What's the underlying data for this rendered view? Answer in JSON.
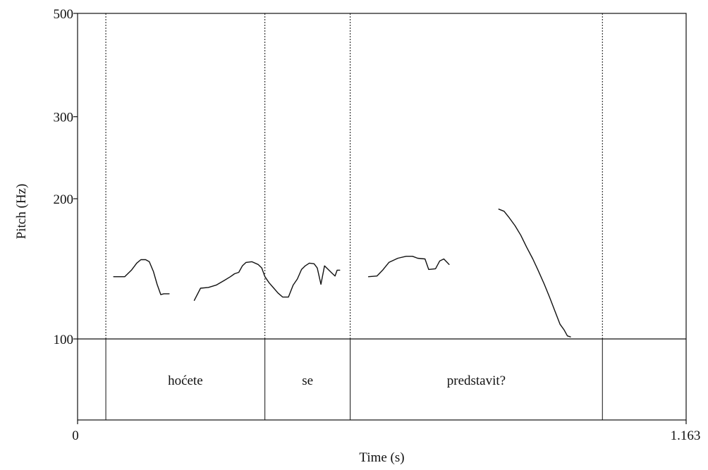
{
  "chart_data": {
    "type": "line",
    "title": "",
    "xlabel": "Time (s)",
    "ylabel": "Pitch (Hz)",
    "xlim": [
      0,
      1.163
    ],
    "ylim": [
      100,
      500
    ],
    "y_scale": "log",
    "x_tick_labels": [
      "0",
      "1.163"
    ],
    "y_tick_labels": [
      "100",
      "200",
      "300",
      "500"
    ],
    "grid": false,
    "legend": "none",
    "colors": {
      "line": "#111111",
      "frame": "#111111",
      "background": "#ffffff"
    },
    "boundaries": [
      0.054,
      0.358,
      0.521,
      1.003
    ],
    "intervals": [
      {
        "text": "hoćete",
        "start": 0.054,
        "end": 0.358
      },
      {
        "text": "se",
        "start": 0.358,
        "end": 0.521
      },
      {
        "text": "predstavit?",
        "start": 0.521,
        "end": 1.003
      }
    ],
    "series": [
      {
        "points": [
          [
            0.069,
            136.0
          ],
          [
            0.09,
            136.0
          ],
          [
            0.103,
            140.5
          ],
          [
            0.113,
            145.5
          ],
          [
            0.121,
            148.0
          ],
          [
            0.13,
            148.0
          ],
          [
            0.137,
            146.5
          ],
          [
            0.145,
            139.5
          ],
          [
            0.152,
            131.0
          ],
          [
            0.159,
            124.5
          ],
          [
            0.165,
            125.0
          ],
          [
            0.175,
            125.0
          ]
        ]
      },
      {
        "points": [
          [
            0.223,
            121.0
          ],
          [
            0.235,
            128.5
          ],
          [
            0.25,
            129.0
          ],
          [
            0.265,
            130.5
          ],
          [
            0.28,
            133.5
          ],
          [
            0.292,
            136.0
          ],
          [
            0.3,
            138.0
          ],
          [
            0.308,
            139.0
          ],
          [
            0.315,
            143.5
          ],
          [
            0.322,
            146.0
          ],
          [
            0.333,
            146.5
          ],
          [
            0.345,
            144.5
          ],
          [
            0.352,
            142.0
          ],
          [
            0.358,
            136.0
          ],
          [
            0.366,
            132.0
          ],
          [
            0.375,
            128.5
          ],
          [
            0.383,
            125.5
          ],
          [
            0.392,
            123.0
          ],
          [
            0.403,
            123.0
          ],
          [
            0.412,
            130.5
          ],
          [
            0.42,
            134.5
          ],
          [
            0.428,
            141.0
          ],
          [
            0.435,
            143.5
          ],
          [
            0.443,
            145.5
          ],
          [
            0.452,
            145.0
          ],
          [
            0.458,
            142.0
          ],
          [
            0.465,
            131.0
          ],
          [
            0.472,
            143.5
          ],
          [
            0.479,
            141.0
          ],
          [
            0.486,
            138.5
          ],
          [
            0.492,
            136.5
          ],
          [
            0.496,
            140.5
          ],
          [
            0.501,
            140.5
          ]
        ]
      },
      {
        "points": [
          [
            0.556,
            136.0
          ],
          [
            0.572,
            136.5
          ],
          [
            0.583,
            140.5
          ],
          [
            0.595,
            146.0
          ],
          [
            0.612,
            149.0
          ],
          [
            0.628,
            150.5
          ],
          [
            0.64,
            150.5
          ],
          [
            0.65,
            149.0
          ],
          [
            0.664,
            148.5
          ],
          [
            0.671,
            141.0
          ],
          [
            0.684,
            141.5
          ],
          [
            0.692,
            147.0
          ],
          [
            0.7,
            148.5
          ],
          [
            0.71,
            144.5
          ]
        ]
      },
      {
        "points": [
          [
            0.805,
            190.0
          ],
          [
            0.815,
            188.0
          ],
          [
            0.825,
            182.0
          ],
          [
            0.836,
            175.0
          ],
          [
            0.847,
            167.0
          ],
          [
            0.858,
            157.5
          ],
          [
            0.87,
            148.5
          ],
          [
            0.88,
            140.5
          ],
          [
            0.892,
            131.0
          ],
          [
            0.902,
            123.0
          ],
          [
            0.912,
            115.0
          ],
          [
            0.922,
            107.5
          ],
          [
            0.93,
            104.5
          ],
          [
            0.936,
            101.5
          ],
          [
            0.942,
            101.0
          ]
        ]
      }
    ]
  }
}
